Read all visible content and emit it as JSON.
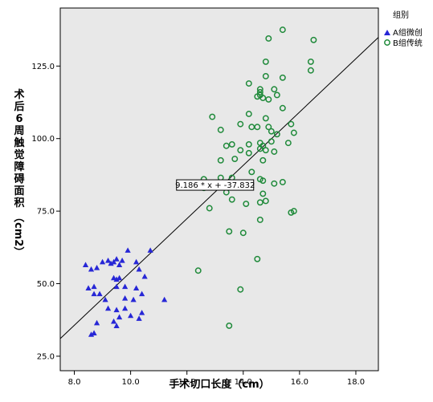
{
  "chart_data": {
    "type": "scatter",
    "xlabel": "手术切口长度（cm）",
    "ylabel": "术后6周触觉障碍面积（cm2）",
    "xlim": [
      7.5,
      18.8
    ],
    "ylim": [
      20,
      145
    ],
    "x_ticks": [
      "8.0",
      "10.0",
      "12.0",
      "14.0",
      "16.0",
      "18.0"
    ],
    "x_tick_values": [
      8,
      10,
      12,
      14,
      16,
      18
    ],
    "y_ticks": [
      "25.0",
      "50.0",
      "75.0",
      "100.0",
      "125.0"
    ],
    "y_tick_values": [
      25,
      50,
      75,
      100,
      125
    ],
    "legend": {
      "title": "组别",
      "items": [
        "A组微创",
        "B组传统"
      ]
    },
    "colors": {
      "A": "#2727d6",
      "B": "#1f8a3a",
      "background": "#e8e8e8",
      "fit_line": "#000000"
    },
    "fit_line": {
      "label": "9.186 * x + -37.832",
      "slope": 9.186,
      "intercept": -37.832,
      "x_range": [
        7.5,
        18.8
      ],
      "label_at": [
        13.0,
        84
      ]
    },
    "series": [
      {
        "name": "A组微创",
        "marker": "triangle",
        "points": [
          [
            8.4,
            56.5
          ],
          [
            8.6,
            55.0
          ],
          [
            8.7,
            49.0
          ],
          [
            8.8,
            55.5
          ],
          [
            9.0,
            57.5
          ],
          [
            9.2,
            58.0
          ],
          [
            9.3,
            57.0
          ],
          [
            9.4,
            57.5
          ],
          [
            9.5,
            58.5
          ],
          [
            9.6,
            56.5
          ],
          [
            9.7,
            58.0
          ],
          [
            9.9,
            61.5
          ],
          [
            9.4,
            52.0
          ],
          [
            9.5,
            51.5
          ],
          [
            9.6,
            52.0
          ],
          [
            9.8,
            49.0
          ],
          [
            10.2,
            57.5
          ],
          [
            10.3,
            55.0
          ],
          [
            10.5,
            52.5
          ],
          [
            10.7,
            61.5
          ],
          [
            8.5,
            48.5
          ],
          [
            8.7,
            46.5
          ],
          [
            8.9,
            46.5
          ],
          [
            9.1,
            44.5
          ],
          [
            9.5,
            49.0
          ],
          [
            9.8,
            45.0
          ],
          [
            10.1,
            44.5
          ],
          [
            10.4,
            46.5
          ],
          [
            10.2,
            48.5
          ],
          [
            11.2,
            44.5
          ],
          [
            9.2,
            41.5
          ],
          [
            9.5,
            41.0
          ],
          [
            9.6,
            38.5
          ],
          [
            9.8,
            41.5
          ],
          [
            10.3,
            38.0
          ],
          [
            10.4,
            40.0
          ],
          [
            9.4,
            37.0
          ],
          [
            9.5,
            35.5
          ],
          [
            8.8,
            36.5
          ],
          [
            8.6,
            32.5
          ],
          [
            8.7,
            33.0
          ],
          [
            10.0,
            39.0
          ]
        ]
      },
      {
        "name": "B组传统",
        "marker": "circle",
        "points": [
          [
            15.4,
            137.5
          ],
          [
            14.9,
            134.5
          ],
          [
            16.5,
            134.0
          ],
          [
            14.8,
            126.5
          ],
          [
            16.4,
            126.5
          ],
          [
            16.4,
            123.5
          ],
          [
            14.8,
            121.5
          ],
          [
            15.4,
            121.0
          ],
          [
            14.2,
            119.0
          ],
          [
            14.6,
            116.0
          ],
          [
            14.6,
            115.0
          ],
          [
            14.7,
            114.0
          ],
          [
            14.9,
            113.5
          ],
          [
            15.1,
            117.0
          ],
          [
            15.2,
            115.0
          ],
          [
            15.4,
            110.5
          ],
          [
            14.5,
            114.5
          ],
          [
            14.6,
            117.0
          ],
          [
            14.2,
            108.5
          ],
          [
            14.8,
            107.0
          ],
          [
            13.9,
            105.0
          ],
          [
            14.3,
            104.0
          ],
          [
            14.9,
            104.0
          ],
          [
            15.7,
            105.0
          ],
          [
            12.9,
            107.5
          ],
          [
            13.2,
            103.0
          ],
          [
            14.5,
            104.0
          ],
          [
            15.0,
            102.5
          ],
          [
            15.2,
            101.5
          ],
          [
            15.8,
            102.0
          ],
          [
            13.4,
            97.5
          ],
          [
            13.6,
            98.0
          ],
          [
            14.2,
            98.0
          ],
          [
            14.6,
            98.5
          ],
          [
            14.7,
            97.5
          ],
          [
            15.0,
            99.0
          ],
          [
            15.6,
            98.5
          ],
          [
            13.9,
            96.0
          ],
          [
            14.2,
            95.0
          ],
          [
            14.6,
            96.5
          ],
          [
            14.8,
            96.0
          ],
          [
            15.1,
            95.5
          ],
          [
            13.2,
            92.5
          ],
          [
            13.7,
            93.0
          ],
          [
            14.7,
            92.5
          ],
          [
            14.3,
            88.5
          ],
          [
            14.6,
            86.0
          ],
          [
            14.7,
            85.5
          ],
          [
            12.6,
            86.0
          ],
          [
            13.2,
            86.5
          ],
          [
            13.6,
            86.5
          ],
          [
            15.1,
            84.5
          ],
          [
            15.4,
            85.0
          ],
          [
            12.6,
            83.0
          ],
          [
            13.4,
            81.5
          ],
          [
            14.7,
            81.0
          ],
          [
            13.6,
            79.0
          ],
          [
            14.1,
            77.5
          ],
          [
            14.6,
            78.0
          ],
          [
            14.8,
            78.5
          ],
          [
            12.8,
            76.0
          ],
          [
            14.6,
            72.0
          ],
          [
            15.7,
            74.5
          ],
          [
            15.8,
            75.0
          ],
          [
            13.5,
            68.0
          ],
          [
            14.0,
            67.5
          ],
          [
            12.4,
            54.5
          ],
          [
            14.5,
            58.5
          ],
          [
            13.9,
            48.0
          ],
          [
            13.5,
            35.5
          ]
        ]
      }
    ]
  }
}
